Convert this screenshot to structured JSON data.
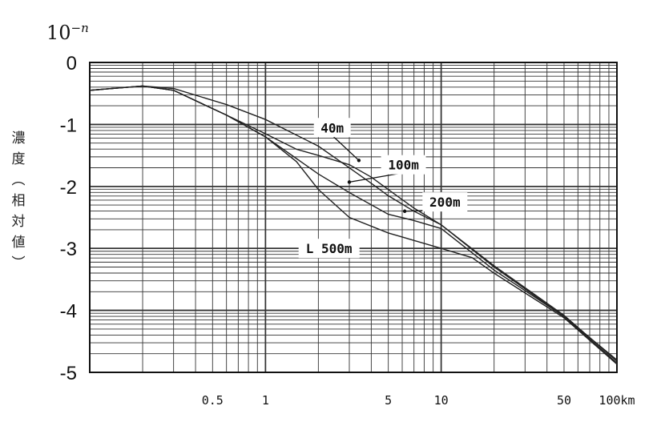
{
  "page": {
    "power_base": "10",
    "power_exp": "−n",
    "ylabel_chars": [
      "濃",
      "度",
      "︵",
      "相",
      "対",
      "値",
      "︶"
    ]
  },
  "chart_data": {
    "type": "line",
    "title": "",
    "ylabel": "濃度（相対値）",
    "xlabel": "",
    "x_scale": "log",
    "x_unit": "km",
    "xlim": [
      0.1,
      100
    ],
    "ylim": [
      -5,
      0
    ],
    "grid": true,
    "y_ticks": [
      {
        "value": 0,
        "label": "0"
      },
      {
        "value": -1,
        "label": "-1"
      },
      {
        "value": -2,
        "label": "-2"
      },
      {
        "value": -3,
        "label": "-3"
      },
      {
        "value": -4,
        "label": "-4"
      },
      {
        "value": -5,
        "label": "-5"
      }
    ],
    "x_ticks": [
      {
        "value": 0.5,
        "label": "0.5"
      },
      {
        "value": 1,
        "label": "1"
      },
      {
        "value": 5,
        "label": "5"
      },
      {
        "value": 10,
        "label": "10"
      },
      {
        "value": 50,
        "label": "50"
      },
      {
        "value": 100,
        "label": "100km"
      }
    ],
    "series": [
      {
        "name": "40m",
        "color": "#222222",
        "x": [
          0.1,
          0.2,
          0.3,
          0.6,
          1.0,
          2.0,
          3.0,
          4.0,
          5.0,
          7.0,
          10.0,
          20.0,
          50.0,
          100.0
        ],
        "y": [
          -0.45,
          -0.38,
          -0.42,
          -0.68,
          -0.92,
          -1.35,
          -1.7,
          -1.95,
          -2.15,
          -2.4,
          -2.62,
          -3.3,
          -4.1,
          -4.8
        ]
      },
      {
        "name": "100m",
        "color": "#222222",
        "x": [
          0.1,
          0.2,
          0.3,
          0.6,
          1.0,
          1.5,
          2.0,
          3.0,
          4.0,
          5.0,
          7.0,
          10.0,
          20.0,
          50.0,
          100.0
        ],
        "y": [
          -0.45,
          -0.38,
          -0.45,
          -0.85,
          -1.15,
          -1.4,
          -1.5,
          -1.65,
          -1.85,
          -2.05,
          -2.35,
          -2.62,
          -3.28,
          -4.08,
          -4.82
        ]
      },
      {
        "name": "200m",
        "color": "#222222",
        "x": [
          0.1,
          0.2,
          0.3,
          0.6,
          1.0,
          1.5,
          2.0,
          3.0,
          5.0,
          7.0,
          10.0,
          20.0,
          50.0,
          100.0
        ],
        "y": [
          -0.45,
          -0.38,
          -0.45,
          -0.85,
          -1.2,
          -1.55,
          -1.8,
          -2.1,
          -2.45,
          -2.55,
          -2.68,
          -3.35,
          -4.1,
          -4.85
        ]
      },
      {
        "name": "L 500m",
        "color": "#222222",
        "x": [
          0.1,
          0.2,
          0.3,
          0.6,
          1.0,
          1.5,
          2.0,
          3.0,
          5.0,
          10.0,
          15.0,
          20.0,
          50.0,
          100.0
        ],
        "y": [
          -0.45,
          -0.38,
          -0.45,
          -0.85,
          -1.2,
          -1.6,
          -2.05,
          -2.5,
          -2.75,
          -3.0,
          -3.15,
          -3.4,
          -4.12,
          -4.87
        ]
      }
    ],
    "annotations": [
      {
        "text": "40m",
        "x": 2.4,
        "y": -1.05,
        "arrow_x": 3.4,
        "arrow_y": -1.58
      },
      {
        "text": "100m",
        "x": 6.1,
        "y": -1.65,
        "arrow_x": 3.0,
        "arrow_y": -1.93
      },
      {
        "text": "200m",
        "x": 10.5,
        "y": -2.25,
        "arrow_x": 6.2,
        "arrow_y": -2.4
      },
      {
        "text": "L 500m",
        "x": 2.3,
        "y": -3.0,
        "arrow_x": null,
        "arrow_y": null
      }
    ]
  }
}
